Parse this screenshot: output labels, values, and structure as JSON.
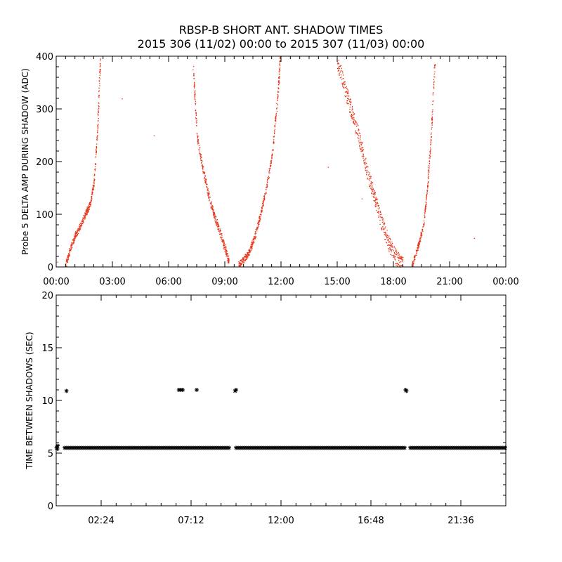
{
  "title": "RBSP-B SHORT ANT. SHADOW TIMES",
  "subtitle": "2015 306 (11/02) 00:00 to 2015 307 (11/03) 00:00",
  "colors": {
    "points_top": "#e8361a",
    "points_bottom": "#000000",
    "axes": "#000000"
  },
  "chart_data": [
    {
      "type": "scatter",
      "ylabel": "Probe 5 DELTA AMP DURING SHADOW (ADC)",
      "x_unit": "hours since 2015-11-02 00:00",
      "xlim": [
        0,
        24
      ],
      "ylim": [
        0,
        400
      ],
      "xtick_values": [
        0,
        3,
        6,
        9,
        12,
        15,
        18,
        21,
        24
      ],
      "xtick_labels": [
        "00:00",
        "03:00",
        "06:00",
        "09:00",
        "12:00",
        "15:00",
        "18:00",
        "21:00",
        "00:00"
      ],
      "ytick_values": [
        0,
        100,
        200,
        300,
        400
      ],
      "ytick_labels": [
        "0",
        "100",
        "200",
        "300",
        "400"
      ],
      "grid": false,
      "bands": [
        {
          "x": [
            0.5,
            0.7,
            1.0,
            1.3,
            1.6,
            1.8,
            2.0,
            2.2,
            2.35
          ],
          "y": [
            5,
            30,
            60,
            80,
            105,
            120,
            160,
            270,
            400
          ],
          "spread": 12
        },
        {
          "x": [
            7.3,
            7.5,
            7.8,
            8.1,
            8.4,
            8.7,
            9.0,
            9.2
          ],
          "y": [
            380,
            250,
            190,
            140,
            100,
            70,
            35,
            10
          ],
          "spread": 14
        },
        {
          "x": [
            9.7,
            10.0,
            10.3,
            10.6,
            10.9,
            11.2,
            11.5,
            11.8,
            11.95
          ],
          "y": [
            5,
            15,
            30,
            60,
            100,
            150,
            210,
            320,
            400
          ],
          "spread": 12
        },
        {
          "x": [
            15.0,
            15.4,
            15.8,
            16.2,
            16.6,
            17.0,
            17.4,
            17.8,
            18.2,
            18.5
          ],
          "y": [
            390,
            340,
            290,
            240,
            180,
            130,
            80,
            40,
            15,
            5
          ],
          "spread": 30
        },
        {
          "x": [
            19.0,
            19.3,
            19.6,
            19.8,
            20.0,
            20.2
          ],
          "y": [
            5,
            40,
            80,
            150,
            250,
            390
          ],
          "spread": 10
        }
      ],
      "outliers": [
        {
          "x": 3.5,
          "y": 320
        },
        {
          "x": 5.2,
          "y": 250
        },
        {
          "x": 14.5,
          "y": 190
        },
        {
          "x": 16.3,
          "y": 130
        },
        {
          "x": 22.3,
          "y": 55
        },
        {
          "x": 0.05,
          "y": 10
        }
      ]
    },
    {
      "type": "scatter",
      "ylabel": "TIME BETWEEN SHADOWS (SEC)",
      "x_unit": "hours since 2015-11-02 00:00",
      "xlim": [
        0,
        24
      ],
      "ylim": [
        0,
        20
      ],
      "xtick_values": [
        2.4,
        7.2,
        12.0,
        16.8,
        21.6
      ],
      "xtick_labels": [
        "02:24",
        "07:12",
        "12:00",
        "16:48",
        "21:36"
      ],
      "ytick_values": [
        0,
        5,
        10,
        15,
        20
      ],
      "ytick_labels": [
        "0",
        "5",
        "10",
        "15",
        "20"
      ],
      "grid": false,
      "baseline_value": 5.5,
      "baseline_segments": [
        [
          0.02,
          0.12
        ],
        [
          0.45,
          9.3
        ],
        [
          9.6,
          18.6
        ],
        [
          18.9,
          24.0
        ]
      ],
      "high_points": [
        {
          "x": 0.06,
          "y": 5.4
        },
        {
          "x": 0.08,
          "y": 5.7
        },
        {
          "x": 0.55,
          "y": 10.9
        },
        {
          "x": 6.55,
          "y": 11.0
        },
        {
          "x": 6.65,
          "y": 11.0
        },
        {
          "x": 6.75,
          "y": 11.0
        },
        {
          "x": 7.5,
          "y": 11.0
        },
        {
          "x": 9.55,
          "y": 10.9
        },
        {
          "x": 9.6,
          "y": 11.0
        },
        {
          "x": 18.65,
          "y": 11.0
        },
        {
          "x": 18.7,
          "y": 10.9
        }
      ]
    }
  ]
}
